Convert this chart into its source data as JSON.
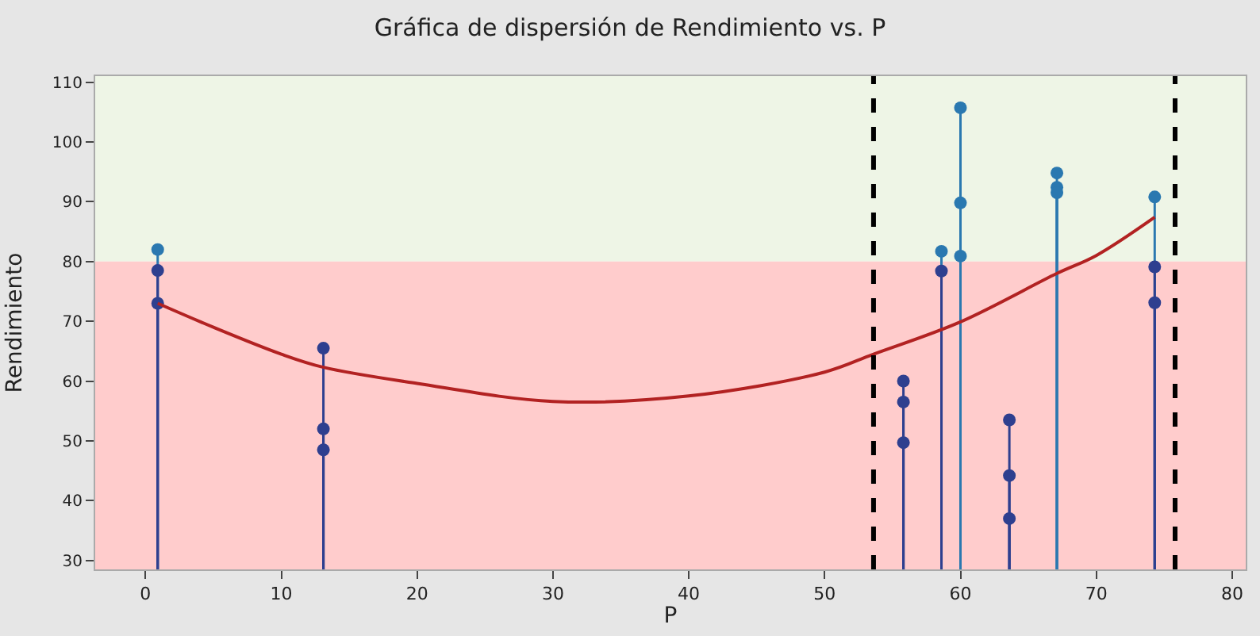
{
  "chart_data": {
    "type": "lollipop",
    "title": "Gráfica de dispersión de Rendimiento vs. P",
    "xlabel": "P",
    "ylabel": "Rendimiento",
    "xlim": [
      -3.7,
      81
    ],
    "xticks": [
      0,
      10,
      20,
      30,
      40,
      50,
      60,
      70,
      80
    ],
    "ylim": [
      28.5,
      111
    ],
    "yticks": [
      30,
      40,
      50,
      60,
      70,
      80,
      90,
      100,
      110
    ],
    "grid": false,
    "marker": "circle",
    "bands": [
      {
        "axis": "y",
        "from": 80,
        "to": 111,
        "color": "#eef5e6"
      },
      {
        "axis": "y",
        "from": 28.5,
        "to": 80,
        "color": "#ffcccc"
      }
    ],
    "ref_lines": [
      {
        "axis": "x",
        "value": 53.6,
        "color": "#000000",
        "line_style": "dashed"
      },
      {
        "axis": "x",
        "value": 75.8,
        "color": "#000000",
        "line_style": "dashed"
      }
    ],
    "series": [
      {
        "x": [
          0.9,
          0.9,
          0.9,
          13.1,
          13.1,
          13.1,
          55.8,
          55.8,
          55.8,
          58.6,
          58.6,
          60,
          60,
          60,
          63.6,
          63.6,
          63.6,
          67.1,
          67.1,
          67.1,
          74.3,
          74.3,
          74.3
        ],
        "values": [
          82,
          78.5,
          73,
          65.5,
          52,
          48.5,
          60,
          56.5,
          49.7,
          81.7,
          78.4,
          105.7,
          89.8,
          80.9,
          53.5,
          44.2,
          37,
          94.8,
          92.4,
          91.5,
          90.8,
          79.1,
          73.1
        ],
        "colors": [
          "#2a78b0",
          "#2e3f8f",
          "#2e3f8f",
          "#2e3f8f",
          "#2e3f8f",
          "#2e3f8f",
          "#2e3f8f",
          "#2e3f8f",
          "#2e3f8f",
          "#2a78b0",
          "#2e3f8f",
          "#2a78b0",
          "#2a78b0",
          "#2a78b0",
          "#2e3f8f",
          "#2e3f8f",
          "#2e3f8f",
          "#2a78b0",
          "#2a78b0",
          "#2a78b0",
          "#2a78b0",
          "#2e3f8f",
          "#2e3f8f"
        ]
      },
      {
        "type": "line",
        "color": "#b22222",
        "marker": "none",
        "x": [
          0.9,
          5,
          10,
          13.1,
          20,
          30,
          40,
          50,
          53.6,
          60,
          67.1,
          70,
          74.3
        ],
        "values": [
          73,
          69,
          64.5,
          62.3,
          59.6,
          56.6,
          57.5,
          61.5,
          64.5,
          69.9,
          78,
          81,
          87.4
        ]
      }
    ]
  }
}
